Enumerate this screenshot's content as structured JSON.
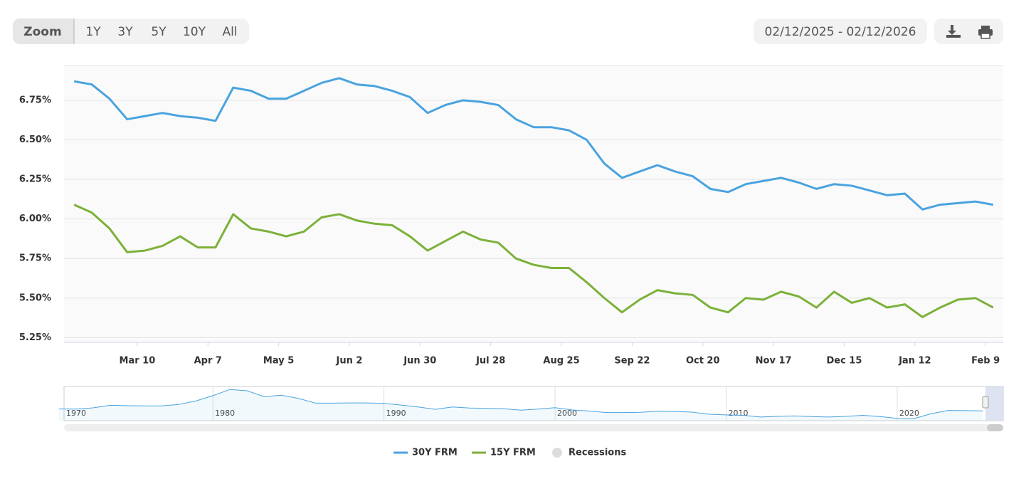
{
  "chart_data": {
    "type": "line",
    "zoom": {
      "label": "Zoom",
      "buttons": [
        "1Y",
        "3Y",
        "5Y",
        "10Y",
        "All"
      ],
      "active": 0
    },
    "date_range": "02/12/2025 - 02/12/2026",
    "x": [
      "2025-02-13",
      "2025-02-20",
      "2025-02-27",
      "2025-03-06",
      "2025-03-13",
      "2025-03-20",
      "2025-03-27",
      "2025-04-03",
      "2025-04-10",
      "2025-04-17",
      "2025-04-24",
      "2025-05-01",
      "2025-05-08",
      "2025-05-15",
      "2025-05-22",
      "2025-05-29",
      "2025-06-05",
      "2025-06-12",
      "2025-06-19",
      "2025-06-26",
      "2025-07-03",
      "2025-07-10",
      "2025-07-17",
      "2025-07-24",
      "2025-07-31",
      "2025-08-07",
      "2025-08-14",
      "2025-08-21",
      "2025-08-28",
      "2025-09-04",
      "2025-09-11",
      "2025-09-18",
      "2025-09-25",
      "2025-10-02",
      "2025-10-09",
      "2025-10-16",
      "2025-10-23",
      "2025-10-30",
      "2025-11-06",
      "2025-11-13",
      "2025-11-20",
      "2025-11-27",
      "2025-12-04",
      "2025-12-11",
      "2025-12-18",
      "2025-12-25",
      "2026-01-01",
      "2026-01-08",
      "2026-01-15",
      "2026-01-22",
      "2026-01-29",
      "2026-02-05",
      "2026-02-12"
    ],
    "series": [
      {
        "name": "30Y FRM",
        "color": "#4aa3df",
        "values": [
          6.87,
          6.85,
          6.76,
          6.63,
          6.65,
          6.67,
          6.65,
          6.64,
          6.62,
          6.83,
          6.81,
          6.76,
          6.76,
          6.81,
          6.86,
          6.89,
          6.85,
          6.84,
          6.81,
          6.77,
          6.67,
          6.72,
          6.75,
          6.74,
          6.72,
          6.63,
          6.58,
          6.58,
          6.56,
          6.5,
          6.35,
          6.26,
          6.3,
          6.34,
          6.3,
          6.27,
          6.19,
          6.17,
          6.22,
          6.24,
          6.26,
          6.23,
          6.19,
          6.22,
          6.21,
          6.18,
          6.15,
          6.16,
          6.06,
          6.09,
          6.1,
          6.11,
          6.09
        ]
      },
      {
        "name": "15Y FRM",
        "color": "#7cb13a",
        "values": [
          6.09,
          6.04,
          5.94,
          5.79,
          5.8,
          5.83,
          5.89,
          5.82,
          5.82,
          6.03,
          5.94,
          5.92,
          5.89,
          5.92,
          6.01,
          6.03,
          5.99,
          5.97,
          5.96,
          5.89,
          5.8,
          5.86,
          5.92,
          5.87,
          5.85,
          5.75,
          5.71,
          5.69,
          5.69,
          5.6,
          5.5,
          5.41,
          5.49,
          5.55,
          5.53,
          5.52,
          5.44,
          5.41,
          5.5,
          5.49,
          5.54,
          5.51,
          5.44,
          5.54,
          5.47,
          5.5,
          5.44,
          5.46,
          5.38,
          5.44,
          5.49,
          5.5,
          5.44
        ]
      }
    ],
    "recessions": {
      "name": "Recessions",
      "color": "#dcdcdc"
    },
    "xlim": [
      "2025-02-09",
      "2026-02-16"
    ],
    "xticks": [
      {
        "value": "2025-03-10",
        "label": "Mar 10"
      },
      {
        "value": "2025-04-07",
        "label": "Apr 7"
      },
      {
        "value": "2025-05-05",
        "label": "May 5"
      },
      {
        "value": "2025-06-02",
        "label": "Jun 2"
      },
      {
        "value": "2025-06-30",
        "label": "Jun 30"
      },
      {
        "value": "2025-07-28",
        "label": "Jul 28"
      },
      {
        "value": "2025-08-25",
        "label": "Aug 25"
      },
      {
        "value": "2025-09-22",
        "label": "Sep 22"
      },
      {
        "value": "2025-10-20",
        "label": "Oct 20"
      },
      {
        "value": "2025-11-17",
        "label": "Nov 17"
      },
      {
        "value": "2025-12-15",
        "label": "Dec 15"
      },
      {
        "value": "2026-01-12",
        "label": "Jan 12"
      },
      {
        "value": "2026-02-09",
        "label": "Feb 9"
      }
    ],
    "ylim": [
      5.22,
      6.97
    ],
    "yticks": [
      {
        "value": 5.25,
        "label": "5.25%"
      },
      {
        "value": 5.5,
        "label": "5.50%"
      },
      {
        "value": 5.75,
        "label": "5.75%"
      },
      {
        "value": 6,
        "label": "6.00%"
      },
      {
        "value": 6.25,
        "label": "6.25%"
      },
      {
        "value": 6.5,
        "label": "6.50%"
      },
      {
        "value": 6.75,
        "label": "6.75%"
      }
    ],
    "grid": true,
    "navigator": {
      "x": [
        1971,
        1972,
        1973,
        1974,
        1975,
        1976,
        1977,
        1978,
        1979,
        1980,
        1981,
        1982,
        1983,
        1984,
        1985,
        1986,
        1987,
        1988,
        1989,
        1990,
        1991,
        1992,
        1993,
        1994,
        1995,
        1996,
        1997,
        1998,
        1999,
        2000,
        2001,
        2002,
        2003,
        2004,
        2005,
        2006,
        2007,
        2008,
        2009,
        2010,
        2011,
        2012,
        2013,
        2014,
        2015,
        2016,
        2017,
        2018,
        2019,
        2020,
        2021,
        2022,
        2023,
        2024,
        2025
      ],
      "values": [
        7.5,
        7.4,
        8.0,
        9.2,
        9.0,
        8.9,
        8.9,
        9.6,
        11.2,
        13.7,
        16.6,
        16.0,
        13.2,
        13.9,
        12.4,
        10.2,
        10.2,
        10.3,
        10.3,
        10.1,
        9.3,
        8.4,
        7.3,
        8.4,
        7.9,
        7.8,
        7.6,
        6.9,
        7.4,
        8.1,
        7.0,
        6.5,
        5.8,
        5.8,
        5.9,
        6.4,
        6.3,
        6.0,
        5.0,
        4.7,
        4.5,
        3.7,
        4.0,
        4.2,
        3.9,
        3.7,
        4.0,
        4.5,
        3.9,
        3.1,
        3.0,
        5.3,
        6.8,
        6.7,
        6.6
      ],
      "xlim": [
        1971.3,
        2026.2
      ],
      "ylim": [
        2,
        18
      ],
      "xticks": [
        1970,
        1980,
        1990,
        2000,
        2010,
        2020
      ]
    }
  }
}
